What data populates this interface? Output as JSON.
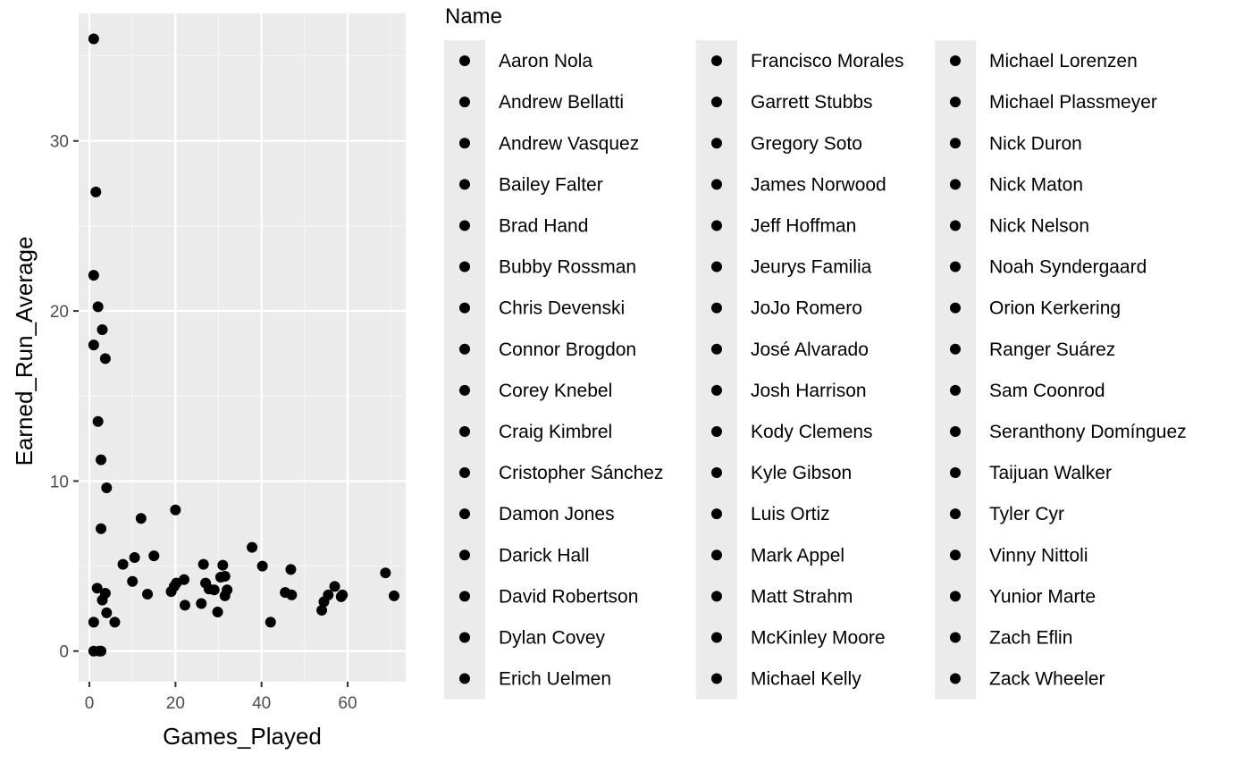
{
  "chart_data": {
    "type": "scatter",
    "xlabel": "Games_Played",
    "ylabel": "Earned_Run_Average",
    "xlim": [
      -2.5,
      73.5
    ],
    "ylim": [
      -1.8,
      37.5
    ],
    "x_ticks": [
      0,
      20,
      40,
      60
    ],
    "y_ticks": [
      0,
      10,
      20,
      30
    ],
    "x_minor": [
      10,
      30,
      50,
      70
    ],
    "y_minor": [
      5,
      15,
      25,
      35
    ],
    "grid": true,
    "legend": {
      "title": "Name",
      "position": "right",
      "columns": [
        [
          "Aaron Nola",
          "Andrew Bellatti",
          "Andrew Vasquez",
          "Bailey Falter",
          "Brad Hand",
          "Bubby Rossman",
          "Chris Devenski",
          "Connor Brogdon",
          "Corey Knebel",
          "Craig Kimbrel",
          "Cristopher Sánchez",
          "Damon Jones",
          "Darick Hall",
          "David Robertson",
          "Dylan Covey",
          "Erich Uelmen"
        ],
        [
          "Francisco Morales",
          "Garrett Stubbs",
          "Gregory Soto",
          "James Norwood",
          "Jeff Hoffman",
          "Jeurys Familia",
          "JoJo Romero",
          "José Alvarado",
          "Josh Harrison",
          "Kody Clemens",
          "Kyle Gibson",
          "Luis Ortiz",
          "Mark Appel",
          "Matt Strahm",
          "McKinley Moore",
          "Michael Kelly"
        ],
        [
          "Michael Lorenzen",
          "Michael Plassmeyer",
          "Nick Duron",
          "Nick Maton",
          "Nick Nelson",
          "Noah Syndergaard",
          "Orion Kerkering",
          "Ranger Suárez",
          "Sam Coonrod",
          "Seranthony Domínguez",
          "Taijuan Walker",
          "Tyler Cyr",
          "Vinny Nittoli",
          "Yunior Marte",
          "Zach Eflin",
          "Zack Wheeler"
        ]
      ]
    },
    "points": [
      {
        "x": 1,
        "y": 36.0
      },
      {
        "x": 1.5,
        "y": 27.0
      },
      {
        "x": 1,
        "y": 22.1
      },
      {
        "x": 2,
        "y": 20.25
      },
      {
        "x": 1,
        "y": 18.0
      },
      {
        "x": 3,
        "y": 18.9
      },
      {
        "x": 3.7,
        "y": 17.2
      },
      {
        "x": 2,
        "y": 13.5
      },
      {
        "x": 2.7,
        "y": 11.25
      },
      {
        "x": 4,
        "y": 9.6
      },
      {
        "x": 20,
        "y": 8.3
      },
      {
        "x": 12,
        "y": 7.8
      },
      {
        "x": 2.7,
        "y": 7.2
      },
      {
        "x": 37.8,
        "y": 6.1
      },
      {
        "x": 15,
        "y": 5.6
      },
      {
        "x": 10.5,
        "y": 5.5
      },
      {
        "x": 7.8,
        "y": 5.1
      },
      {
        "x": 26.5,
        "y": 5.1
      },
      {
        "x": 31,
        "y": 5.05
      },
      {
        "x": 40.2,
        "y": 5.0
      },
      {
        "x": 46.8,
        "y": 4.8
      },
      {
        "x": 68.8,
        "y": 4.6
      },
      {
        "x": 31.5,
        "y": 4.4
      },
      {
        "x": 30.5,
        "y": 4.35
      },
      {
        "x": 22,
        "y": 4.2
      },
      {
        "x": 10,
        "y": 4.1
      },
      {
        "x": 20.2,
        "y": 4.0
      },
      {
        "x": 27,
        "y": 4.0
      },
      {
        "x": 19.7,
        "y": 3.8
      },
      {
        "x": 57,
        "y": 3.8
      },
      {
        "x": 1.8,
        "y": 3.7
      },
      {
        "x": 27.8,
        "y": 3.65
      },
      {
        "x": 29,
        "y": 3.6
      },
      {
        "x": 32,
        "y": 3.6
      },
      {
        "x": 19,
        "y": 3.5
      },
      {
        "x": 45.5,
        "y": 3.45
      },
      {
        "x": 3.7,
        "y": 3.4
      },
      {
        "x": 13.5,
        "y": 3.35
      },
      {
        "x": 55.5,
        "y": 3.3
      },
      {
        "x": 58.8,
        "y": 3.3
      },
      {
        "x": 47,
        "y": 3.3
      },
      {
        "x": 70.8,
        "y": 3.25
      },
      {
        "x": 31.5,
        "y": 3.25
      },
      {
        "x": 58.5,
        "y": 3.2
      },
      {
        "x": 3,
        "y": 3.0
      },
      {
        "x": 54.5,
        "y": 2.9
      },
      {
        "x": 26,
        "y": 2.8
      },
      {
        "x": 22.2,
        "y": 2.7
      },
      {
        "x": 54,
        "y": 2.4
      },
      {
        "x": 29.8,
        "y": 2.3
      },
      {
        "x": 4,
        "y": 2.25
      },
      {
        "x": 1,
        "y": 1.7
      },
      {
        "x": 5.9,
        "y": 1.7
      },
      {
        "x": 42.1,
        "y": 1.7
      },
      {
        "x": 1,
        "y": 0.0
      },
      {
        "x": 2.3,
        "y": 0.0
      },
      {
        "x": 2.7,
        "y": 0.0
      }
    ]
  }
}
